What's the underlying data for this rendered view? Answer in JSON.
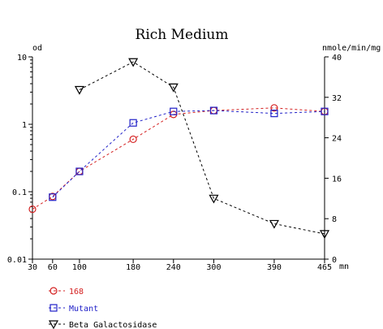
{
  "chart_data": {
    "type": "line",
    "title": "Rich Medium",
    "y_left_label": "od",
    "y_right_label": "nmole/min/mg",
    "x_unit_label": "mn",
    "x_ticks": [
      30,
      60,
      100,
      180,
      240,
      300,
      390,
      465
    ],
    "x_tick_labels": [
      "30",
      "60",
      "100",
      "180",
      "240",
      "300",
      "390",
      "465"
    ],
    "y_left_scale": "log",
    "y_left_range": [
      0.01,
      10
    ],
    "y_left_ticks": [
      0.01,
      0.1,
      1,
      10
    ],
    "y_left_tick_labels": [
      "0.01",
      "0.1",
      "1",
      "10"
    ],
    "y_right_range": [
      0,
      40
    ],
    "y_right_ticks": [
      0,
      8,
      16,
      24,
      32,
      40
    ],
    "y_right_tick_labels": [
      "0",
      "8",
      "16",
      "24",
      "32",
      "40"
    ],
    "grid": false,
    "legend_position": "bottom-left",
    "series": [
      {
        "name": "168",
        "axis": "left",
        "color": "#d42020",
        "marker": "circle",
        "x": [
          30,
          60,
          100,
          180,
          240,
          300,
          390,
          465
        ],
        "y": [
          0.055,
          0.085,
          0.2,
          0.6,
          1.4,
          1.6,
          1.75,
          1.55
        ]
      },
      {
        "name": "Mutant",
        "axis": "left",
        "color": "#2020c8",
        "marker": "square",
        "x": [
          60,
          100,
          180,
          240,
          300,
          390,
          465
        ],
        "y": [
          0.083,
          0.2,
          1.05,
          1.55,
          1.6,
          1.45,
          1.55
        ]
      },
      {
        "name": "Beta Galactosidase",
        "axis": "right",
        "color": "#000000",
        "marker": "triangle-down",
        "x": [
          100,
          180,
          240,
          300,
          390,
          465
        ],
        "y": [
          33.5,
          39,
          34,
          12,
          7,
          5
        ]
      }
    ]
  }
}
